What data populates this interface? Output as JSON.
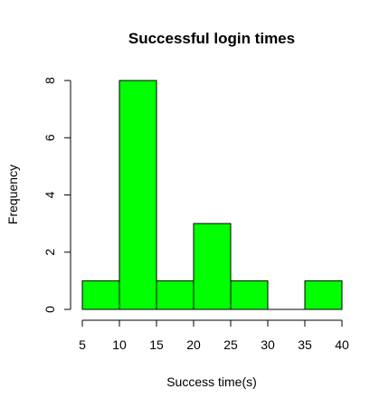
{
  "chart_data": {
    "type": "bar",
    "subtype": "histogram",
    "title": "Successful login times",
    "xlabel": "Success time(s)",
    "ylabel": "Frequency",
    "bins": [
      {
        "from": 5,
        "to": 10,
        "count": 1
      },
      {
        "from": 10,
        "to": 15,
        "count": 8
      },
      {
        "from": 15,
        "to": 20,
        "count": 1
      },
      {
        "from": 20,
        "to": 25,
        "count": 3
      },
      {
        "from": 25,
        "to": 30,
        "count": 1
      },
      {
        "from": 30,
        "to": 35,
        "count": 0
      },
      {
        "from": 35,
        "to": 40,
        "count": 1
      }
    ],
    "xlim": [
      5,
      40
    ],
    "ylim": [
      0,
      8
    ],
    "x_ticks": [
      "5",
      "10",
      "15",
      "20",
      "25",
      "30",
      "35",
      "40"
    ],
    "y_ticks": [
      "0",
      "2",
      "4",
      "6",
      "8"
    ],
    "bar_color": "#00ff00",
    "border_color": "#000000",
    "grid": false,
    "legend": "none"
  }
}
